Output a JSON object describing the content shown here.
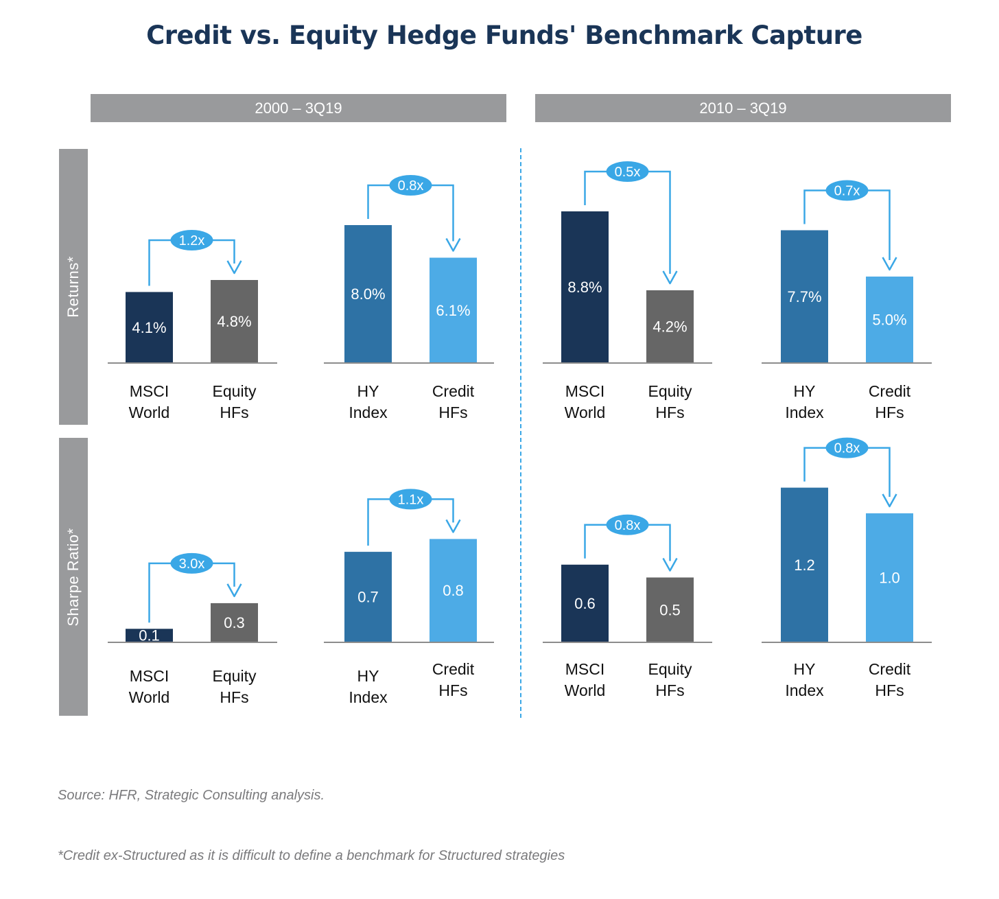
{
  "title": "Credit vs. Equity Hedge Funds' Benchmark Capture",
  "periods": [
    "2000 – 3Q19",
    "2010 – 3Q19"
  ],
  "rows": [
    "Returns*",
    "Sharpe Ratio*"
  ],
  "source": "Source: HFR, Strategic Consulting analysis.",
  "footnote": "*Credit ex-Structured as it is difficult to define a benchmark for Structured strategies",
  "colors": {
    "msci": "#1a3557",
    "equity_hf": "#666666",
    "hy_index": "#2e72a5",
    "credit_hf": "#4dabe6",
    "arrow": "#3aa7e6",
    "axis": "#8c8c8c"
  },
  "chart_data": [
    {
      "type": "bar",
      "row": "Returns*",
      "period": "2000 – 3Q19",
      "categories": [
        [
          "MSCI",
          "World"
        ],
        [
          "Equity",
          "HFs"
        ]
      ],
      "values": [
        4.1,
        4.8
      ],
      "labels": [
        "4.1%",
        "4.8%"
      ],
      "capture": "1.2x",
      "bar_colors": [
        "msci",
        "equity_hf"
      ]
    },
    {
      "type": "bar",
      "row": "Returns*",
      "period": "2000 – 3Q19",
      "categories": [
        [
          "HY",
          "Index"
        ],
        [
          "Credit",
          "HFs"
        ]
      ],
      "values": [
        8.0,
        6.1
      ],
      "labels": [
        "8.0%",
        "6.1%"
      ],
      "capture": "0.8x",
      "bar_colors": [
        "hy_index",
        "credit_hf"
      ]
    },
    {
      "type": "bar",
      "row": "Returns*",
      "period": "2010 – 3Q19",
      "categories": [
        [
          "MSCI",
          "World"
        ],
        [
          "Equity",
          "HFs"
        ]
      ],
      "values": [
        8.8,
        4.2
      ],
      "labels": [
        "8.8%",
        "4.2%"
      ],
      "capture": "0.5x",
      "bar_colors": [
        "msci",
        "equity_hf"
      ]
    },
    {
      "type": "bar",
      "row": "Returns*",
      "period": "2010 – 3Q19",
      "categories": [
        [
          "HY",
          "Index"
        ],
        [
          "Credit",
          "HFs"
        ]
      ],
      "values": [
        7.7,
        5.0
      ],
      "labels": [
        "7.7%",
        "5.0%"
      ],
      "capture": "0.7x",
      "bar_colors": [
        "hy_index",
        "credit_hf"
      ]
    },
    {
      "type": "bar",
      "row": "Sharpe Ratio*",
      "period": "2000 – 3Q19",
      "categories": [
        [
          "MSCI",
          "World"
        ],
        [
          "Equity",
          "HFs"
        ]
      ],
      "values": [
        0.1,
        0.3
      ],
      "labels": [
        "0.1",
        "0.3"
      ],
      "capture": "3.0x",
      "bar_colors": [
        "msci",
        "equity_hf"
      ]
    },
    {
      "type": "bar",
      "row": "Sharpe Ratio*",
      "period": "2000 – 3Q19",
      "categories": [
        [
          "HY",
          "Index"
        ],
        [
          "Credit",
          "HFs"
        ]
      ],
      "values": [
        0.7,
        0.8
      ],
      "labels": [
        "0.7",
        "0.8"
      ],
      "capture": "1.1x",
      "bar_colors": [
        "hy_index",
        "credit_hf"
      ]
    },
    {
      "type": "bar",
      "row": "Sharpe Ratio*",
      "period": "2010 – 3Q19",
      "categories": [
        [
          "MSCI",
          "World"
        ],
        [
          "Equity",
          "HFs"
        ]
      ],
      "values": [
        0.6,
        0.5
      ],
      "labels": [
        "0.6",
        "0.5"
      ],
      "capture": "0.8x",
      "bar_colors": [
        "msci",
        "equity_hf"
      ]
    },
    {
      "type": "bar",
      "row": "Sharpe Ratio*",
      "period": "2010 – 3Q19",
      "categories": [
        [
          "HY",
          "Index"
        ],
        [
          "Credit",
          "HFs"
        ]
      ],
      "values": [
        1.2,
        1.0
      ],
      "labels": [
        "1.2",
        "1.0"
      ],
      "capture": "0.8x",
      "bar_colors": [
        "hy_index",
        "credit_hf"
      ]
    }
  ]
}
